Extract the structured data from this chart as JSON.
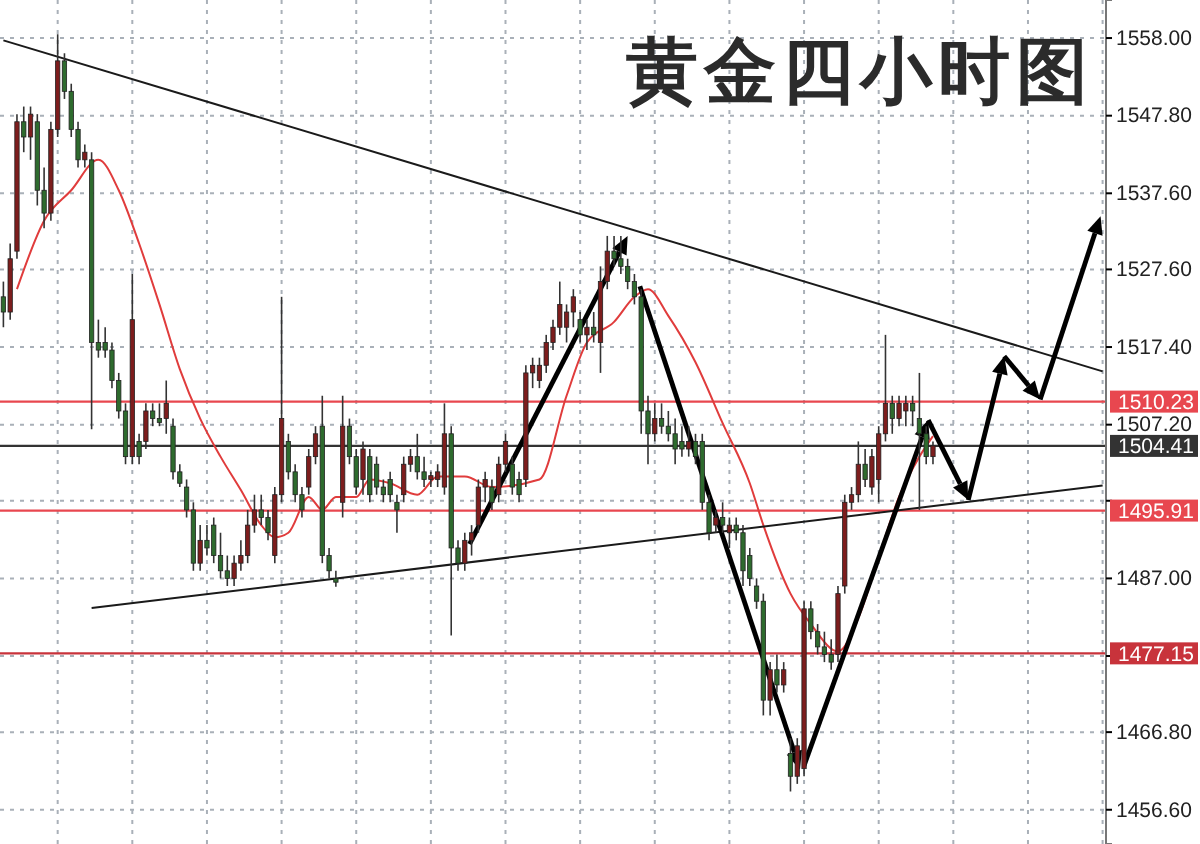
{
  "chart_data": {
    "type": "candlestick",
    "title": "黄金四小时图",
    "categories": [
      null,
      null,
      null,
      null,
      null,
      null,
      null,
      null,
      null,
      null,
      null,
      null,
      null,
      null,
      null,
      null,
      null,
      null,
      null,
      null,
      null,
      null,
      null,
      null,
      null,
      null,
      null,
      null,
      null,
      null,
      null,
      null,
      null,
      null,
      null,
      null,
      null,
      null,
      null,
      null,
      null,
      null,
      null,
      null,
      null,
      null,
      null,
      null,
      null,
      null,
      null,
      null,
      null,
      null,
      null,
      null,
      null,
      null,
      null,
      null,
      null,
      null,
      null,
      null,
      null,
      null,
      null,
      null,
      null,
      null,
      null,
      null,
      null,
      null,
      null,
      null,
      null,
      null,
      null,
      null,
      null,
      null,
      null,
      null,
      null,
      null,
      null,
      null,
      null,
      null,
      null,
      null,
      null,
      null,
      null,
      null,
      null,
      null,
      null,
      null,
      null,
      null,
      null,
      null,
      null,
      null,
      null,
      null,
      null,
      null,
      null,
      null,
      null,
      null,
      null,
      null,
      null,
      null,
      null,
      null,
      null,
      null,
      null,
      null,
      null,
      null,
      null,
      null,
      null,
      null,
      null,
      null,
      null,
      null,
      null,
      null,
      null,
      null,
      null,
      null,
      null,
      null,
      null,
      null,
      null,
      null,
      null,
      null,
      null,
      null,
      null,
      null,
      null,
      null,
      null,
      null,
      null,
      null,
      null,
      null,
      null,
      null,
      null
    ],
    "ohlc": [
      [
        1524,
        1526,
        1520,
        1522
      ],
      [
        1522,
        1531,
        1521,
        1529
      ],
      [
        1530,
        1548,
        1529,
        1547
      ],
      [
        1547,
        1549,
        1543,
        1545
      ],
      [
        1545,
        1549,
        1542,
        1548
      ],
      [
        1547,
        1548,
        1536,
        1538
      ],
      [
        1538,
        1541,
        1533,
        1535
      ],
      [
        1535,
        1547,
        1534,
        1546
      ],
      [
        1546,
        1558.5,
        1545,
        1555
      ],
      [
        1555,
        1556,
        1550,
        1551
      ],
      [
        1551,
        1552,
        1545,
        1546
      ],
      [
        1546,
        1547,
        1541,
        1542
      ],
      [
        1542,
        1544,
        1541,
        1543
      ],
      [
        1542,
        1543,
        1506.6,
        1518
      ],
      [
        1518,
        1521,
        1516,
        1517
      ],
      [
        1518,
        1520,
        1516,
        1517
      ],
      [
        1517,
        1518,
        1512,
        1513
      ],
      [
        1513,
        1514,
        1508,
        1509
      ],
      [
        1509,
        1510,
        1502,
        1503
      ],
      [
        1503,
        1527,
        1502,
        1521
      ],
      [
        1505,
        1506,
        1502,
        1503
      ],
      [
        1505,
        1510,
        1504,
        1509
      ],
      [
        1509,
        1510,
        1507,
        1508
      ],
      [
        1508,
        1510,
        1507,
        1507.5
      ],
      [
        1508,
        1513,
        1506,
        1510
      ],
      [
        1507,
        1508,
        1500,
        1501
      ],
      [
        1501,
        1502,
        1499,
        1499.5
      ],
      [
        1499,
        1500,
        1495,
        1496
      ],
      [
        1496,
        1497,
        1488,
        1489
      ],
      [
        1489,
        1494,
        1488,
        1492
      ],
      [
        1492,
        1494,
        1490,
        1491
      ],
      [
        1494,
        1495,
        1489,
        1490
      ],
      [
        1490,
        1493,
        1487,
        1488
      ],
      [
        1488,
        1490,
        1486,
        1487
      ],
      [
        1487,
        1490,
        1486,
        1489
      ],
      [
        1489,
        1492,
        1488,
        1490
      ],
      [
        1490,
        1496,
        1489,
        1494
      ],
      [
        1494,
        1498,
        1493,
        1496
      ],
      [
        1496,
        1498,
        1494,
        1495
      ],
      [
        1495,
        1496,
        1492,
        1493
      ],
      [
        1490,
        1499,
        1489,
        1498
      ],
      [
        1498,
        1524,
        1497,
        1508
      ],
      [
        1505,
        1506,
        1500,
        1501
      ],
      [
        1501,
        1502,
        1497,
        1498
      ],
      [
        1498,
        1499,
        1495,
        1496
      ],
      [
        1499,
        1504,
        1498,
        1503
      ],
      [
        1503,
        1507,
        1502,
        1506
      ],
      [
        1507,
        1511,
        1489,
        1490
      ],
      [
        1490,
        1491,
        1487,
        1488
      ],
      [
        1487,
        1488,
        1485.9,
        1486.5
      ],
      [
        1497,
        1511,
        1495,
        1507
      ],
      [
        1507,
        1508,
        1502,
        1503
      ],
      [
        1503,
        1504,
        1498,
        1499
      ],
      [
        1500,
        1505,
        1498,
        1504
      ],
      [
        1503,
        1504,
        1497,
        1498
      ],
      [
        1502,
        1503,
        1498,
        1499
      ],
      [
        1499,
        1500,
        1497,
        1498
      ],
      [
        1500,
        1501,
        1497,
        1498
      ],
      [
        1497,
        1498,
        1493,
        1496
      ],
      [
        1498,
        1503,
        1497,
        1502
      ],
      [
        1502,
        1504,
        1501,
        1503
      ],
      [
        1503,
        1506,
        1500,
        1501
      ],
      [
        1501,
        1503,
        1499,
        1500
      ],
      [
        1500,
        1501,
        1499,
        1500.5
      ],
      [
        1500,
        1502,
        1499,
        1501
      ],
      [
        1499,
        1510,
        1498,
        1506
      ],
      [
        1506,
        1507,
        1479.5,
        1491
      ],
      [
        1491,
        1492,
        1488,
        1489
      ],
      [
        1489,
        1493,
        1488,
        1492
      ],
      [
        1492,
        1494,
        1490,
        1493
      ],
      [
        1494,
        1500,
        1493,
        1499
      ],
      [
        1499,
        1501,
        1497,
        1500
      ],
      [
        1499,
        1500,
        1496,
        1497
      ],
      [
        1498,
        1503,
        1497,
        1502
      ],
      [
        1502,
        1506,
        1501,
        1505
      ],
      [
        1502,
        1503,
        1498,
        1499
      ],
      [
        1500,
        1501,
        1497,
        1498
      ],
      [
        1500,
        1515,
        1499,
        1514
      ],
      [
        1514,
        1516,
        1512,
        1515
      ],
      [
        1513,
        1516,
        1512,
        1515
      ],
      [
        1515,
        1519,
        1514,
        1518
      ],
      [
        1518,
        1521,
        1517,
        1520
      ],
      [
        1520,
        1526,
        1519,
        1523
      ],
      [
        1520,
        1523,
        1518,
        1522
      ],
      [
        1522,
        1525,
        1520,
        1524
      ],
      [
        1521,
        1522,
        1518,
        1519
      ],
      [
        1519,
        1521,
        1517,
        1520
      ],
      [
        1520,
        1522,
        1518,
        1519
      ],
      [
        1518,
        1528,
        1514,
        1526
      ],
      [
        1526,
        1532,
        1525,
        1530
      ],
      [
        1530,
        1532,
        1528,
        1529
      ],
      [
        1529,
        1532,
        1527,
        1528
      ],
      [
        1528,
        1529,
        1525,
        1526
      ],
      [
        1526,
        1527,
        1523,
        1524
      ],
      [
        1524,
        1525,
        1506,
        1509
      ],
      [
        1509,
        1511,
        1502,
        1506
      ],
      [
        1506,
        1510,
        1505,
        1508
      ],
      [
        1508,
        1510,
        1506,
        1507
      ],
      [
        1507,
        1509,
        1505,
        1506
      ],
      [
        1506,
        1508,
        1502,
        1504
      ],
      [
        1505,
        1507,
        1503,
        1504
      ],
      [
        1504,
        1507,
        1503,
        1505
      ],
      [
        1505,
        1506,
        1502,
        1503
      ],
      [
        1505,
        1506,
        1496,
        1497
      ],
      [
        1497,
        1498,
        1492,
        1493
      ],
      [
        1494,
        1496,
        1493,
        1495
      ],
      [
        1495,
        1497,
        1493,
        1494
      ],
      [
        1493,
        1495,
        1491,
        1494
      ],
      [
        1494,
        1495,
        1492,
        1493
      ],
      [
        1493,
        1494,
        1486,
        1488
      ],
      [
        1490,
        1491,
        1486,
        1487
      ],
      [
        1486,
        1487,
        1483,
        1484
      ],
      [
        1484,
        1485,
        1469,
        1471
      ],
      [
        1471,
        1476,
        1469,
        1475
      ],
      [
        1475,
        1477,
        1472,
        1473
      ],
      [
        1473,
        1476,
        1472,
        1475
      ],
      [
        1464,
        1466,
        1459,
        1461
      ],
      [
        1461,
        1466,
        1460,
        1465
      ],
      [
        1462,
        1484,
        1461,
        1483
      ],
      [
        1483,
        1484,
        1479,
        1480
      ],
      [
        1480,
        1481,
        1477,
        1478
      ],
      [
        1478,
        1480,
        1476,
        1477
      ],
      [
        1477,
        1479,
        1475,
        1476
      ],
      [
        1477,
        1486,
        1476,
        1485
      ],
      [
        1486,
        1498,
        1485,
        1497
      ],
      [
        1497,
        1499,
        1496,
        1498
      ],
      [
        1498,
        1505,
        1497,
        1502
      ],
      [
        1502,
        1504,
        1499,
        1500
      ],
      [
        1499,
        1504,
        1498,
        1503
      ],
      [
        1500,
        1507,
        1497,
        1506
      ],
      [
        1506,
        1519,
        1505,
        1510
      ],
      [
        1510,
        1511,
        1506,
        1508
      ],
      [
        1508,
        1511,
        1507,
        1510
      ],
      [
        1509,
        1511,
        1507,
        1510
      ],
      [
        1510,
        1511,
        1507,
        1509
      ],
      [
        1508,
        1514,
        1496,
        1506
      ],
      [
        1506,
        1507,
        1502,
        1503
      ],
      [
        1503,
        1505,
        1502,
        1504.41
      ],
      null,
      null,
      null,
      null,
      null,
      null,
      null,
      null,
      null,
      null,
      null,
      null,
      null,
      null,
      null,
      null,
      null,
      null,
      null,
      null,
      null,
      null,
      null,
      null,
      null
    ],
    "series": [
      {
        "type": "line",
        "color": "#e03c3c",
        "values": [
          null,
          null,
          1525,
          null,
          null,
          null,
          1534,
          null,
          null,
          null,
          1538,
          null,
          null,
          null,
          1542,
          null,
          null,
          1538,
          null,
          null,
          1531,
          null,
          null,
          1523,
          null,
          null,
          1514.5,
          null,
          null,
          1508,
          null,
          null,
          1503,
          null,
          null,
          1498.6,
          null,
          null,
          1494,
          null,
          1492.4,
          null,
          1493,
          null,
          null,
          1497.7,
          null,
          1496,
          null,
          1497.7,
          null,
          null,
          1497.7,
          null,
          1500,
          null,
          null,
          1499.5,
          null,
          null,
          null,
          1498,
          null,
          null,
          1500.4,
          null,
          null,
          null,
          1500.4,
          null,
          null,
          null,
          1499,
          null,
          null,
          null,
          null,
          null,
          null,
          1500,
          null,
          null,
          null,
          1511,
          null,
          null,
          1518,
          null,
          null,
          null,
          1520.7,
          null,
          null,
          1524,
          null,
          1525,
          null,
          null,
          1521.5,
          null,
          null,
          null,
          1515.4,
          null,
          null,
          null,
          1507.4,
          null,
          null,
          null,
          1499.5,
          null,
          1494,
          null,
          null,
          null,
          1485,
          null,
          null,
          1481,
          null,
          null,
          null,
          1477.4,
          null,
          null,
          1481.8,
          null,
          null,
          1489.8,
          null,
          null,
          1497.7,
          null,
          null,
          1503,
          null,
          1505.7,
          null,
          null,
          null,
          null,
          null,
          null,
          null,
          null,
          null,
          null,
          null,
          null,
          null,
          null,
          null,
          null,
          null,
          null,
          null,
          null,
          null,
          null,
          null,
          null,
          null
        ]
      },
      {
        "type": "line",
        "color": "#1a1a1a",
        "values": [
          1557.7,
          null,
          null,
          null,
          null,
          null,
          null,
          null,
          null,
          null,
          null,
          null,
          null,
          null,
          null,
          null,
          null,
          null,
          null,
          null,
          null,
          null,
          null,
          null,
          null,
          null,
          null,
          null,
          null,
          null,
          null,
          null,
          null,
          null,
          null,
          null,
          null,
          null,
          null,
          null,
          null,
          null,
          null,
          null,
          null,
          null,
          null,
          null,
          null,
          null,
          null,
          null,
          null,
          null,
          null,
          null,
          null,
          null,
          null,
          null,
          null,
          null,
          null,
          null,
          null,
          null,
          null,
          null,
          null,
          null,
          null,
          null,
          null,
          null,
          null,
          null,
          null,
          null,
          null,
          null,
          null,
          null,
          null,
          null,
          null,
          null,
          null,
          null,
          null,
          null,
          null,
          null,
          null,
          null,
          null,
          null,
          null,
          null,
          null,
          null,
          null,
          null,
          null,
          null,
          null,
          null,
          null,
          null,
          null,
          null,
          null,
          null,
          null,
          null,
          null,
          null,
          null,
          null,
          null,
          null,
          null,
          null,
          null,
          null,
          null,
          null,
          null,
          null,
          null,
          null,
          null,
          null,
          null,
          null,
          null,
          null,
          null,
          null,
          null,
          null,
          null,
          null,
          null,
          null,
          null,
          null,
          null,
          null,
          null,
          null,
          null,
          null,
          null,
          null,
          null,
          null,
          null,
          null,
          null,
          null,
          null,
          null,
          1514.2
        ]
      },
      {
        "type": "line",
        "color": "#1a1a1a",
        "values": [
          null,
          null,
          null,
          null,
          null,
          null,
          null,
          null,
          null,
          null,
          null,
          null,
          null,
          1483.1,
          null,
          null,
          null,
          null,
          null,
          null,
          null,
          null,
          null,
          null,
          null,
          null,
          null,
          null,
          null,
          null,
          null,
          null,
          null,
          null,
          null,
          null,
          null,
          null,
          null,
          null,
          null,
          null,
          null,
          null,
          null,
          null,
          null,
          null,
          null,
          null,
          null,
          null,
          null,
          null,
          null,
          null,
          null,
          null,
          null,
          null,
          null,
          null,
          null,
          null,
          null,
          null,
          null,
          null,
          null,
          null,
          null,
          null,
          null,
          null,
          null,
          null,
          null,
          null,
          null,
          null,
          null,
          null,
          null,
          null,
          null,
          null,
          null,
          null,
          null,
          null,
          null,
          null,
          null,
          null,
          null,
          null,
          null,
          null,
          null,
          null,
          null,
          null,
          null,
          null,
          null,
          null,
          null,
          null,
          null,
          null,
          null,
          null,
          null,
          null,
          null,
          null,
          null,
          null,
          null,
          null,
          null,
          null,
          null,
          null,
          null,
          null,
          null,
          null,
          null,
          null,
          null,
          null,
          null,
          null,
          null,
          null,
          null,
          null,
          null,
          null,
          null,
          null,
          null,
          null,
          null,
          null,
          null,
          null,
          null,
          null,
          null,
          null,
          null,
          null,
          null,
          null,
          null,
          null,
          null,
          null,
          null,
          null,
          1499.2
        ]
      }
    ],
    "ylim": [
      1452.1,
      1563.0
    ],
    "yticks": [
      {
        "value": 1558,
        "label": "1558.00"
      },
      {
        "value": 1547.8,
        "label": "1547.80"
      },
      {
        "value": 1537.6,
        "label": "1537.60"
      },
      {
        "value": 1527.6,
        "label": "1527.60"
      },
      {
        "value": 1517.4,
        "label": "1517.40"
      },
      {
        "value": 1507.2,
        "label": "1507.20"
      },
      {
        "value": 1497.2,
        "label": null
      },
      {
        "value": 1487,
        "label": "1487.00"
      },
      {
        "value": 1476.8,
        "label": null
      },
      {
        "value": 1466.8,
        "label": "1466.80"
      },
      {
        "value": 1456.6,
        "label": "1456.60"
      }
    ],
    "ref_lines": [
      {
        "axis": "y",
        "value": 1510.23,
        "label": "1510.23",
        "color": "#e8474f"
      },
      {
        "axis": "y",
        "value": 1504.41,
        "label": "1504.41",
        "color": "#333333"
      },
      {
        "axis": "y",
        "value": 1495.91,
        "label": "1495.91",
        "color": "#e8474f"
      },
      {
        "axis": "y",
        "value": 1477.15,
        "label": "1477.15",
        "color": "#c8333b"
      }
    ],
    "grid": true,
    "tick_labels": "y"
  }
}
